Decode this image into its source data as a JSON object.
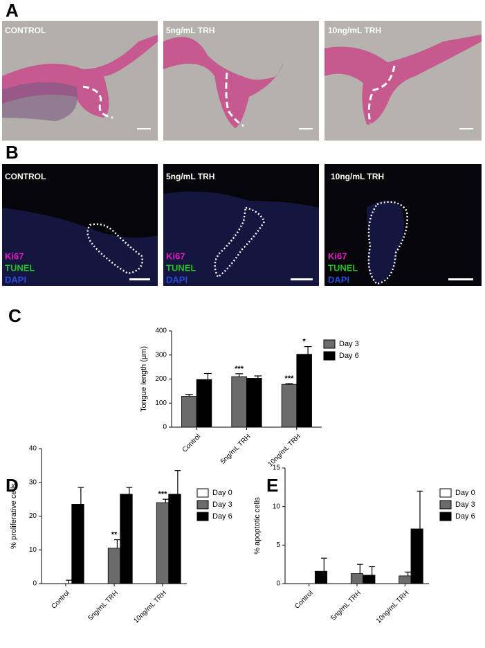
{
  "panel_letters": [
    "A",
    "B",
    "C",
    "D",
    "E"
  ],
  "panel_a": {
    "labels": [
      "CONTROL",
      "5ng/mL TRH",
      "10ng/mL TRH"
    ]
  },
  "panel_b": {
    "labels": [
      "CONTROL",
      "5ng/mL TRH",
      "10ng/mL TRH"
    ],
    "stains": [
      "Ki67",
      "TUNEL",
      "DAPI"
    ]
  },
  "chart_data": [
    {
      "type": "bar",
      "y_label": "Tongue length (μm)",
      "categories": [
        "Control",
        "5ng/mL TRH",
        "10ng/mL TRH"
      ],
      "series": [
        {
          "name": "Day 3",
          "color": "#6b6b6b",
          "values": [
            128,
            210,
            178
          ],
          "errors": [
            8,
            12,
            3
          ]
        },
        {
          "name": "Day 6",
          "color": "#000000",
          "values": [
            198,
            203,
            303
          ],
          "errors": [
            25,
            10,
            32
          ]
        }
      ],
      "ylim": [
        0,
        400
      ],
      "yticks": [
        0,
        100,
        200,
        300,
        400
      ],
      "annotations": [
        {
          "text": "***",
          "series": 0,
          "index": 1
        },
        {
          "text": "***",
          "series": 0,
          "index": 2
        },
        {
          "text": "*",
          "series": 1,
          "index": 2
        }
      ]
    },
    {
      "type": "bar",
      "y_label": "% proliferative cells",
      "categories": [
        "Control",
        "5ng/mL TRH",
        "10ng/mL TRH"
      ],
      "series": [
        {
          "name": "Day 0",
          "color": "#ffffff",
          "values": [
            null,
            null,
            null
          ],
          "errors": [
            null,
            null,
            null
          ]
        },
        {
          "name": "Day 3",
          "color": "#6b6b6b",
          "values": [
            0,
            10.5,
            24
          ],
          "errors": [
            1,
            2.5,
            1
          ]
        },
        {
          "name": "Day 6",
          "color": "#000000",
          "values": [
            23.5,
            26.5,
            26.5
          ],
          "errors": [
            5,
            2,
            7
          ]
        }
      ],
      "ylim": [
        0,
        40
      ],
      "yticks": [
        0,
        10,
        20,
        30,
        40
      ],
      "annotations": [
        {
          "text": "**",
          "series": 1,
          "index": 1
        },
        {
          "text": "***",
          "series": 1,
          "index": 2
        }
      ]
    },
    {
      "type": "bar",
      "y_label": "% apoptotic cells",
      "categories": [
        "Control",
        "5ng/mL TRH",
        "10ng/mL TRH"
      ],
      "series": [
        {
          "name": "Day 0",
          "color": "#ffffff",
          "values": [
            null,
            null,
            null
          ],
          "errors": [
            null,
            null,
            null
          ]
        },
        {
          "name": "Day 3",
          "color": "#6b6b6b",
          "values": [
            null,
            1.3,
            1.0
          ],
          "errors": [
            null,
            1.2,
            0.5
          ]
        },
        {
          "name": "Day 6",
          "color": "#000000",
          "values": [
            1.6,
            1.1,
            7.1
          ],
          "errors": [
            1.7,
            1.1,
            4.9
          ]
        }
      ],
      "ylim": [
        0,
        15
      ],
      "yticks": [
        0,
        5,
        10,
        15
      ],
      "annotations": []
    }
  ]
}
